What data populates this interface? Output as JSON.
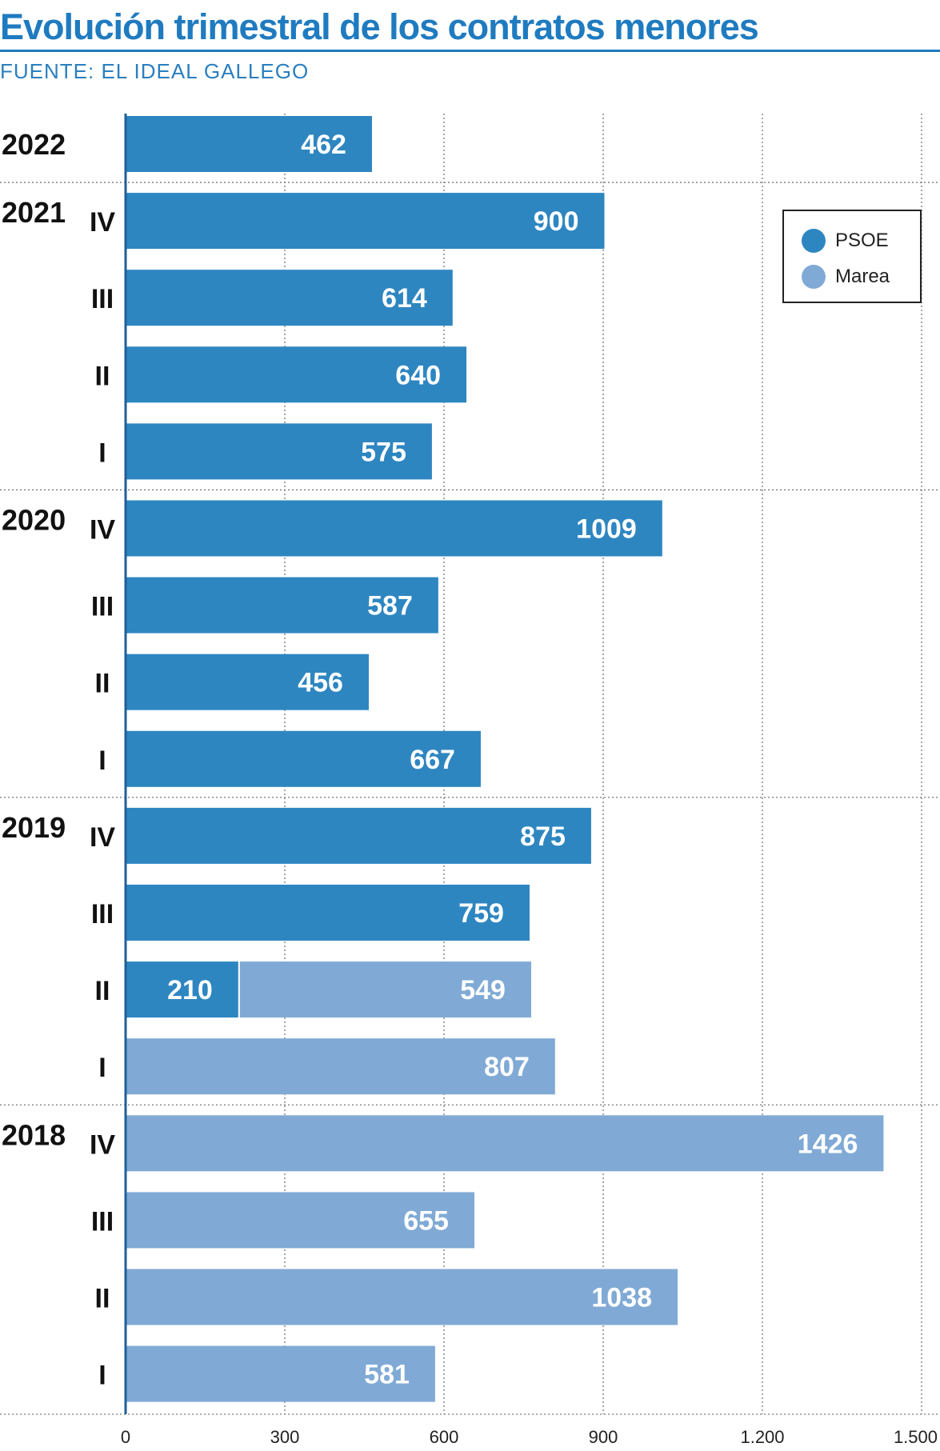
{
  "header": {
    "title": "Evolución trimestral de los contratos menores",
    "source": "FUENTE: EL IDEAL GALLEGO"
  },
  "colors": {
    "psoe": "#2e86c1",
    "marea": "#80aad5",
    "title": "#1f7bc0"
  },
  "legend": {
    "items": [
      {
        "label": "PSOE",
        "key": "psoe"
      },
      {
        "label": "Marea",
        "key": "marea"
      }
    ]
  },
  "chart_data": {
    "type": "bar",
    "orientation": "horizontal",
    "stacked": true,
    "title": "Evolución trimestral de los contratos menores",
    "xlim": [
      0,
      1500
    ],
    "xticks": [
      0,
      300,
      600,
      900,
      1200,
      1500
    ],
    "xtick_labels": [
      "0",
      "300",
      "600",
      "900",
      "1.200",
      "1.500"
    ],
    "series": [
      {
        "name": "PSOE",
        "key": "psoe"
      },
      {
        "name": "Marea",
        "key": "marea"
      }
    ],
    "rows": [
      {
        "year": "2022",
        "quarter": "",
        "psoe": 462,
        "marea": 0
      },
      {
        "year": "2021",
        "quarter": "IV",
        "psoe": 900,
        "marea": 0
      },
      {
        "year": "",
        "quarter": "III",
        "psoe": 614,
        "marea": 0
      },
      {
        "year": "",
        "quarter": "II",
        "psoe": 640,
        "marea": 0
      },
      {
        "year": "",
        "quarter": "I",
        "psoe": 575,
        "marea": 0
      },
      {
        "year": "2020",
        "quarter": "IV",
        "psoe": 1009,
        "marea": 0
      },
      {
        "year": "",
        "quarter": "III",
        "psoe": 587,
        "marea": 0
      },
      {
        "year": "",
        "quarter": "II",
        "psoe": 456,
        "marea": 0
      },
      {
        "year": "",
        "quarter": "I",
        "psoe": 667,
        "marea": 0
      },
      {
        "year": "2019",
        "quarter": "IV",
        "psoe": 875,
        "marea": 0
      },
      {
        "year": "",
        "quarter": "III",
        "psoe": 759,
        "marea": 0
      },
      {
        "year": "",
        "quarter": "II",
        "psoe": 210,
        "marea": 549
      },
      {
        "year": "",
        "quarter": "I",
        "psoe": 0,
        "marea": 807
      },
      {
        "year": "2018",
        "quarter": "IV",
        "psoe": 0,
        "marea": 1426
      },
      {
        "year": "",
        "quarter": "III",
        "psoe": 0,
        "marea": 655
      },
      {
        "year": "",
        "quarter": "II",
        "psoe": 0,
        "marea": 1038
      },
      {
        "year": "",
        "quarter": "I",
        "psoe": 0,
        "marea": 581
      }
    ]
  }
}
